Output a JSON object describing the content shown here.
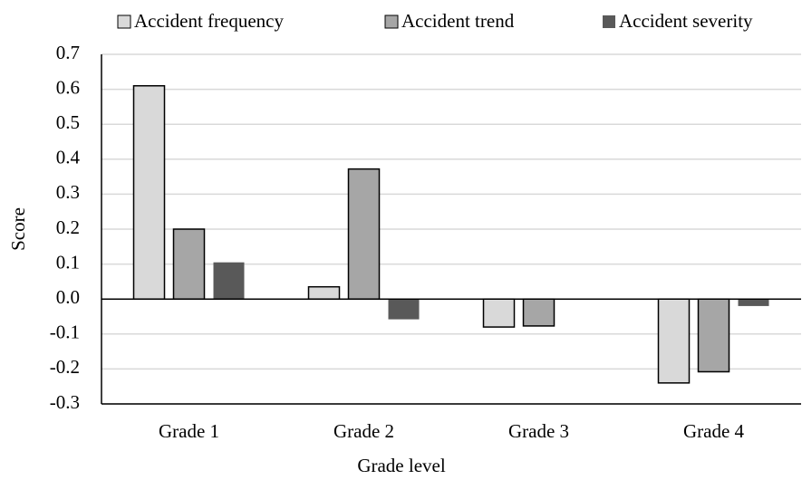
{
  "chart_data": {
    "type": "bar",
    "x_label": "Grade level",
    "y_label": "Score",
    "categories": [
      "Grade 1",
      "Grade 2",
      "Grade 3",
      "Grade 4"
    ],
    "series": [
      {
        "name": "Accident frequency",
        "color": "#d9d9d9",
        "values": [
          0.61,
          0.035,
          -0.08,
          -0.24
        ]
      },
      {
        "name": "Accident trend",
        "color": "#a6a6a6",
        "values": [
          0.2,
          0.372,
          -0.077,
          -0.208
        ]
      },
      {
        "name": "Accident severity",
        "color": "#595959",
        "values": [
          0.105,
          -0.058,
          0,
          -0.02
        ]
      }
    ],
    "ylim": [
      -0.3,
      0.7
    ],
    "yticks": [
      -0.3,
      -0.2,
      -0.1,
      {
        "value": 0,
        "label": "0.0"
      },
      0.1,
      0.2,
      0.3,
      0.4,
      0.5,
      0.6,
      0.7
    ],
    "grid": true,
    "legend": "top"
  }
}
